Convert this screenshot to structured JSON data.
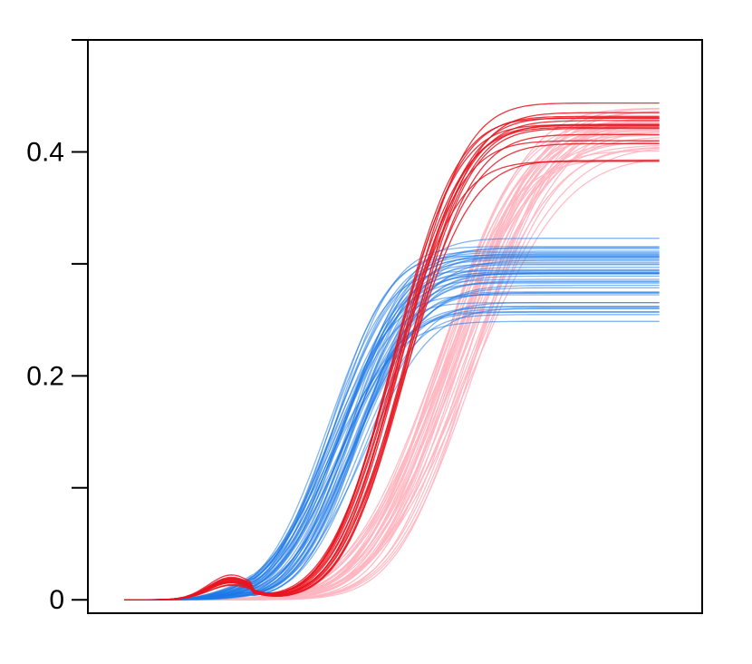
{
  "chart_data": {
    "type": "line",
    "title": "",
    "xlabel": "",
    "ylabel": "",
    "xlim": [
      0,
      1.08
    ],
    "ylim": [
      -0.012,
      0.5
    ],
    "x_range": [
      0,
      1
    ],
    "y_ticks": [
      0,
      0.1,
      0.2,
      0.3,
      0.4,
      0.5
    ],
    "y_tick_labels": [
      "0",
      "",
      "0.2",
      "",
      "0.4",
      ""
    ],
    "grid": false,
    "legend": "none",
    "groups": [
      {
        "key": "pink",
        "color": "#ffb6c1",
        "stroke_opacity": 0.9,
        "count": 36,
        "plateau_min": 0.39,
        "plateau_max": 0.448,
        "rise_mid_min": 0.58,
        "rise_mid_max": 0.66,
        "rise_width_min": 0.11,
        "rise_width_max": 0.14
      },
      {
        "key": "blue",
        "color": "#1e78e6",
        "stroke_opacity": 0.55,
        "count": 48,
        "plateau_min": 0.23,
        "plateau_max": 0.333,
        "rise_mid_min": 0.38,
        "rise_mid_max": 0.45,
        "rise_width_min": 0.085,
        "rise_width_max": 0.105
      },
      {
        "key": "red",
        "color": "#e8141e",
        "stroke_opacity": 0.85,
        "count": 16,
        "plateau_min": 0.385,
        "plateau_max": 0.445,
        "rise_mid_min": 0.5,
        "rise_mid_max": 0.53,
        "rise_width_min": 0.092,
        "rise_width_max": 0.1
      }
    ]
  }
}
